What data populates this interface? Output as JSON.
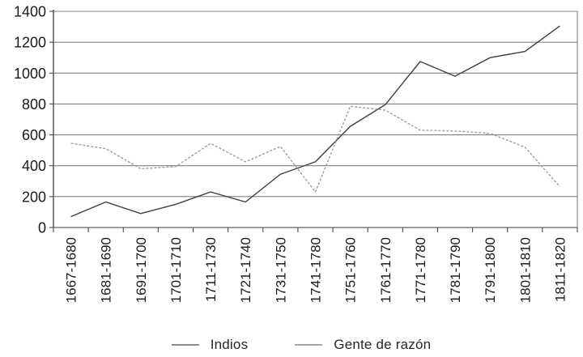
{
  "chart_data": {
    "type": "line",
    "title": "",
    "xlabel": "",
    "ylabel": "",
    "categories": [
      "1667-1680",
      "1681-1690",
      "1691-1700",
      "1701-1710",
      "1711-1730",
      "1721-1740",
      "1731-1750",
      "1741-1780",
      "1751-1760",
      "1761-1770",
      "1771-1780",
      "1781-1790",
      "1791-1800",
      "1801-1810",
      "1811-1820"
    ],
    "series": [
      {
        "name": "Indios",
        "values": [
          70,
          165,
          90,
          150,
          230,
          165,
          345,
          425,
          655,
          795,
          1075,
          980,
          1100,
          1140,
          1305
        ],
        "color": "#3f3f3f",
        "dash": "",
        "swatch_color": "#8c8c8c"
      },
      {
        "name": "Gente de razón",
        "values": [
          545,
          510,
          380,
          395,
          545,
          425,
          525,
          230,
          785,
          760,
          630,
          625,
          610,
          520,
          265
        ],
        "color": "#9e9e9e",
        "dash": "3,2",
        "swatch_color": "#a6a6a6"
      }
    ],
    "ylim": [
      0,
      1400
    ],
    "ytick_step": 200,
    "ytick_labels": [
      "0",
      "200",
      "400",
      "600",
      "800",
      "1000",
      "1200",
      "1400"
    ],
    "grid": true,
    "legend_position": "bottom"
  },
  "colors": {
    "gridline": "#808080",
    "axis": "#4a4a4a",
    "text": "#1a1a1a"
  }
}
